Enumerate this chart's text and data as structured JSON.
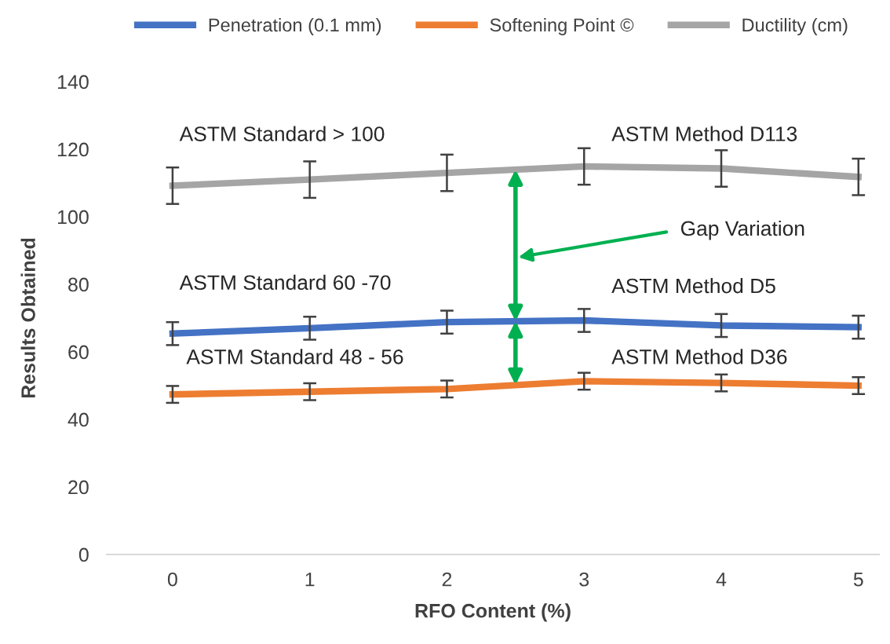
{
  "chart_data": {
    "type": "line",
    "xlabel": "RFO Content (%)",
    "ylabel": "Results Obtained",
    "x": [
      0,
      1,
      2,
      3,
      4,
      5
    ],
    "xlim": [
      -0.48,
      5.15
    ],
    "xticks": [
      0,
      1,
      2,
      3,
      4,
      5
    ],
    "ylim": [
      0,
      140
    ],
    "yticks": [
      0,
      20,
      40,
      60,
      80,
      100,
      120,
      140
    ],
    "grid": false,
    "legend": "top",
    "marker": "none",
    "line_style": "solid",
    "series": [
      {
        "name": "Penetration (0.1 mm)",
        "color": "#4472c4",
        "values": [
          65.4,
          67,
          68.8,
          69.3,
          67.8,
          67.3
        ],
        "errors": [
          3.4,
          3.4,
          3.4,
          3.4,
          3.4,
          3.4
        ]
      },
      {
        "name": "Softening Point ©",
        "color": "#ed7d31",
        "values": [
          47.4,
          48.2,
          49,
          51.3,
          50.8,
          50
        ],
        "errors": [
          2.5,
          2.5,
          2.5,
          2.5,
          2.5,
          2.5
        ]
      },
      {
        "name": "Ductility (cm)",
        "color": "#a5a5a5",
        "values": [
          109.2,
          111,
          113,
          114.9,
          114.3,
          111.8
        ],
        "errors": [
          5.4,
          5.4,
          5.4,
          5.4,
          5.4,
          5.4
        ]
      }
    ],
    "annotations": [
      "ASTM Standard > 100",
      "ASTM Method D113",
      "Gap Variation",
      "ASTM Standard 60 -70",
      "ASTM Method D5",
      "ASTM Standard 48 - 56",
      "ASTM Method D36"
    ]
  }
}
